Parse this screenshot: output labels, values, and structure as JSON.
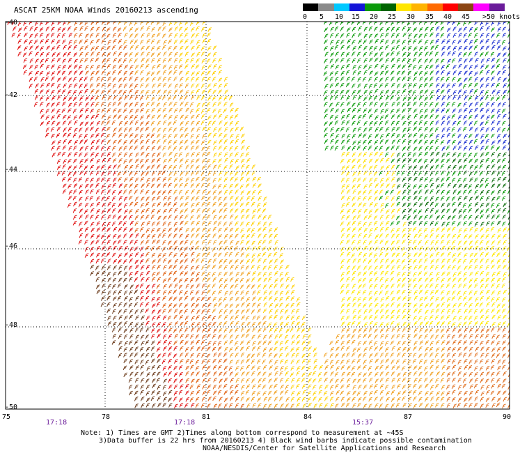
{
  "title": "ASCAT 25KM NOAA Winds 20160213 ascending",
  "legend": {
    "labels": [
      "0",
      "5",
      "10",
      "15",
      "20",
      "25",
      "30",
      "35",
      "40",
      "45",
      ">50 knots"
    ],
    "colors": [
      "#000000",
      "#8a8a8a",
      "#00c8ff",
      "#1414d8",
      "#0a9a0a",
      "#006400",
      "#ffe600",
      "#ffb400",
      "#ff6a00",
      "#ff0000",
      "#8b4513",
      "#ff00ff",
      "#6a1b9a"
    ]
  },
  "axes": {
    "x_ticks": [
      "75",
      "78",
      "81",
      "84",
      "87",
      "90"
    ],
    "y_ticks": [
      "-40",
      "-42",
      "-44",
      "-46",
      "-48",
      "-50"
    ]
  },
  "pass_times": [
    "17:18",
    "17:18",
    "15:37"
  ],
  "notes": [
    "Note: 1) Times are GMT 2)Times along bottom correspond to measurement at ~45S",
    "3)Data buffer is 22 hrs from 20160213 4) Black wind barbs indicate possible contamination",
    "NOAA/NESDIS/Center for Satellite Applications and Research"
  ]
}
